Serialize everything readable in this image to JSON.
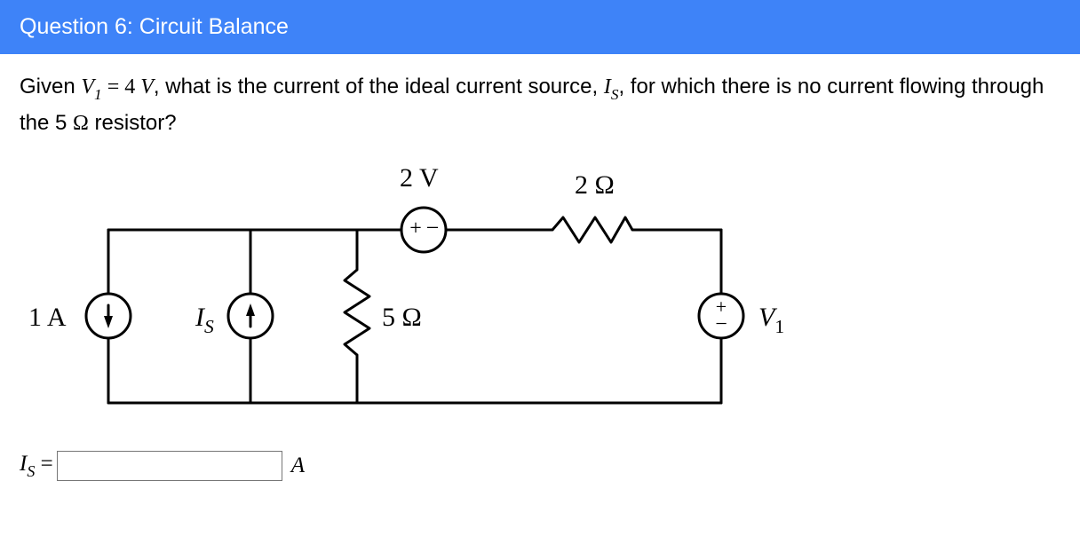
{
  "header": {
    "title": "Question 6: Circuit Balance",
    "bg": "#3e83f8",
    "fg": "#ffffff"
  },
  "prompt": {
    "pre": "Given ",
    "v1_sym": "V",
    "v1_sub": "1",
    "eq": " = 4",
    "v1_unit": " V",
    "mid1": ", what is the current of the ideal current source, ",
    "is_sym": "I",
    "is_sub": "S",
    "mid2": ", for which there is no current flowing through the 5 ",
    "ohm": "Ω",
    "tail": " resistor?"
  },
  "circuit": {
    "stroke": "#000000",
    "stroke_width": 3,
    "labels": {
      "src1A": "1 A",
      "srcIs_sym": "I",
      "srcIs_sub": "S",
      "r5": "5 Ω",
      "v2": "2 V",
      "r2": "2 Ω",
      "v1_sym": "V",
      "v1_sub": "1"
    }
  },
  "answer": {
    "lhs_sym": "I",
    "lhs_sub": "S",
    "eq": " = ",
    "value": "",
    "unit": "A"
  }
}
